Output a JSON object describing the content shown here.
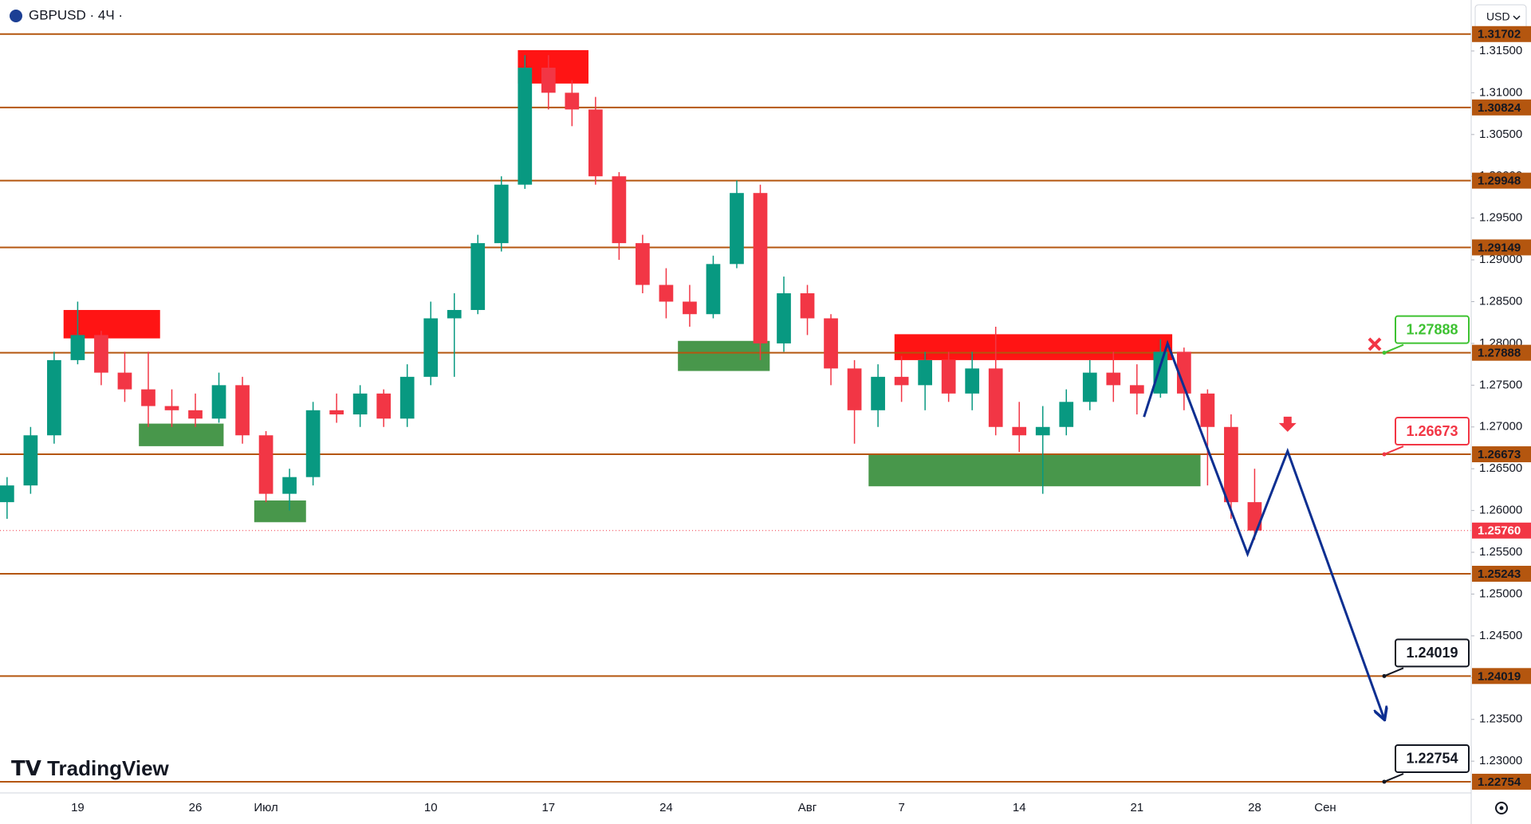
{
  "header": {
    "symbol": "GBPUSD · 4Ч ·",
    "currency": "USD",
    "logo": "TradingView"
  },
  "chart_data": {
    "type": "candlestick",
    "categories": [
      null,
      null,
      null,
      "19",
      null,
      null,
      null,
      null,
      "26",
      null,
      null,
      "Июл",
      null,
      null,
      null,
      null,
      null,
      null,
      "10",
      null,
      null,
      null,
      null,
      "17",
      null,
      null,
      null,
      null,
      "24",
      null,
      null,
      null,
      null,
      null,
      "Авг",
      null,
      null,
      null,
      "7",
      null,
      null,
      null,
      null,
      "14",
      null,
      null,
      null,
      null,
      "21",
      null,
      null,
      null,
      null,
      "28",
      null,
      null,
      "Сен",
      null,
      null,
      null
    ],
    "open": [
      1.261,
      1.263,
      1.269,
      1.278,
      1.281,
      1.2765,
      1.2745,
      1.2725,
      1.272,
      1.271,
      1.275,
      1.269,
      1.262,
      1.264,
      1.272,
      1.2715,
      1.274,
      1.271,
      1.276,
      1.283,
      1.284,
      1.292,
      1.299,
      1.313,
      1.31,
      1.308,
      1.3,
      1.292,
      1.287,
      1.285,
      1.2835,
      1.2895,
      1.298,
      1.28,
      1.286,
      1.283,
      1.277,
      1.272,
      1.276,
      1.275,
      1.278,
      1.274,
      1.277,
      1.27,
      1.269,
      1.27,
      1.273,
      1.2765,
      1.275,
      1.274,
      1.279,
      1.274,
      1.27,
      1.261,
      null,
      null,
      null,
      null,
      null,
      null
    ],
    "high": [
      1.264,
      1.27,
      1.279,
      1.285,
      1.2815,
      1.279,
      1.279,
      1.2745,
      1.274,
      1.2765,
      1.276,
      1.2695,
      1.265,
      1.273,
      1.274,
      1.275,
      1.2745,
      1.2775,
      1.285,
      1.286,
      1.293,
      1.3,
      1.3145,
      1.3145,
      1.3115,
      1.3095,
      1.3005,
      1.293,
      1.289,
      1.287,
      1.2905,
      1.2995,
      1.299,
      1.288,
      1.287,
      1.2835,
      1.278,
      1.2775,
      1.2785,
      1.279,
      1.279,
      1.279,
      1.282,
      1.273,
      1.2725,
      1.2745,
      1.278,
      1.279,
      1.2775,
      1.2805,
      1.2795,
      1.2745,
      1.2715,
      1.265,
      null,
      null,
      null,
      null,
      null,
      null
    ],
    "low": [
      1.259,
      1.262,
      1.268,
      1.2775,
      1.275,
      1.273,
      1.27,
      1.27,
      1.27,
      1.2705,
      1.268,
      1.261,
      1.26,
      1.263,
      1.2705,
      1.27,
      1.27,
      1.27,
      1.275,
      1.276,
      1.2835,
      1.291,
      1.2985,
      1.308,
      1.306,
      1.299,
      1.29,
      1.286,
      1.283,
      1.282,
      1.283,
      1.289,
      1.278,
      1.279,
      1.281,
      1.275,
      1.268,
      1.27,
      1.273,
      1.272,
      1.273,
      1.272,
      1.269,
      1.267,
      1.262,
      1.269,
      1.272,
      1.273,
      1.2715,
      1.2735,
      1.272,
      1.263,
      1.259,
      1.2565,
      null,
      null,
      null,
      null,
      null,
      null
    ],
    "close": [
      1.263,
      1.269,
      1.278,
      1.281,
      1.2765,
      1.2745,
      1.2725,
      1.272,
      1.271,
      1.275,
      1.269,
      1.262,
      1.264,
      1.272,
      1.2715,
      1.274,
      1.271,
      1.276,
      1.283,
      1.284,
      1.292,
      1.299,
      1.313,
      1.31,
      1.308,
      1.3,
      1.292,
      1.287,
      1.285,
      1.2835,
      1.2895,
      1.298,
      1.28,
      1.286,
      1.283,
      1.277,
      1.272,
      1.276,
      1.275,
      1.278,
      1.274,
      1.277,
      1.27,
      1.269,
      1.27,
      1.273,
      1.2765,
      1.275,
      1.274,
      1.279,
      1.274,
      1.27,
      1.261,
      1.2576,
      null,
      null,
      null,
      null,
      null,
      null
    ],
    "up_color": "#089981",
    "down_color": "#f23645",
    "xlim": [
      -0.3,
      62.2
    ],
    "ylim": [
      1.2262,
      1.3211
    ],
    "yticks": [
      {
        "value": 1.23,
        "label": "1.23000"
      },
      {
        "value": 1.235,
        "label": "1.23500"
      },
      {
        "value": 1.24,
        "label": "1.24000"
      },
      {
        "value": 1.245,
        "label": "1.24500"
      },
      {
        "value": 1.25,
        "label": "1.25000"
      },
      {
        "value": 1.255,
        "label": "1.25500"
      },
      {
        "value": 1.26,
        "label": "1.26000"
      },
      {
        "value": 1.265,
        "label": "1.26500"
      },
      {
        "value": 1.27,
        "label": "1.27000"
      },
      {
        "value": 1.275,
        "label": "1.27500"
      },
      {
        "value": 1.28,
        "label": "1.28000"
      },
      {
        "value": 1.285,
        "label": "1.28500"
      },
      {
        "value": 1.29,
        "label": "1.29000"
      },
      {
        "value": 1.295,
        "label": "1.29500"
      },
      {
        "value": 1.3,
        "label": "1.30000"
      },
      {
        "value": 1.305,
        "label": "1.30500"
      },
      {
        "value": 1.31,
        "label": "1.31000"
      },
      {
        "value": 1.315,
        "label": "1.31500"
      }
    ],
    "level_color": "#b4560f",
    "levels": [
      {
        "value": 1.31702
      },
      {
        "value": 1.30824
      },
      {
        "value": 1.29948
      },
      {
        "value": 1.29149
      },
      {
        "value": 1.27888,
        "callout": "#3ec232"
      },
      {
        "value": 1.26673,
        "callout": "#f23645"
      },
      {
        "value": 1.25243
      },
      {
        "value": 1.24019,
        "callout": "#131722"
      },
      {
        "value": 1.22754,
        "callout": "#131722"
      }
    ],
    "last_price": {
      "value": 1.2576,
      "label": "1.25760",
      "color": "#f23645"
    },
    "zones": [
      {
        "x": [
          2.4,
          6.5
        ],
        "y": [
          1.2806,
          1.284
        ],
        "color": "#ff0000"
      },
      {
        "x": [
          5.6,
          9.2
        ],
        "y": [
          1.2677,
          1.2704
        ],
        "color": "#388e3c"
      },
      {
        "x": [
          10.5,
          12.7
        ],
        "y": [
          1.2586,
          1.2612
        ],
        "color": "#388e3c"
      },
      {
        "x": [
          21.7,
          24.7
        ],
        "y": [
          1.3111,
          1.3151
        ],
        "color": "#ff0000"
      },
      {
        "x": [
          28.5,
          32.4
        ],
        "y": [
          1.2767,
          1.2803
        ],
        "color": "#388e3c"
      },
      {
        "x": [
          37.7,
          49.5
        ],
        "y": [
          1.278,
          1.2811
        ],
        "color": "#ff0000"
      },
      {
        "x": [
          36.6,
          50.7
        ],
        "y": [
          1.2629,
          1.2668
        ],
        "color": "#388e3c"
      }
    ],
    "forecast": {
      "x": [
        48.3,
        49.3,
        52.7,
        54.4,
        58.5
      ],
      "y": [
        1.2712,
        1.28,
        1.2548,
        1.2671,
        1.2351
      ],
      "color": "#0d2f91"
    },
    "markers": [
      {
        "type": "cross",
        "x": 58.1,
        "y": 1.2799,
        "color": "#f23645"
      },
      {
        "type": "arrow-down",
        "x": 54.4,
        "y": 1.2697,
        "color": "#f23645"
      }
    ]
  }
}
